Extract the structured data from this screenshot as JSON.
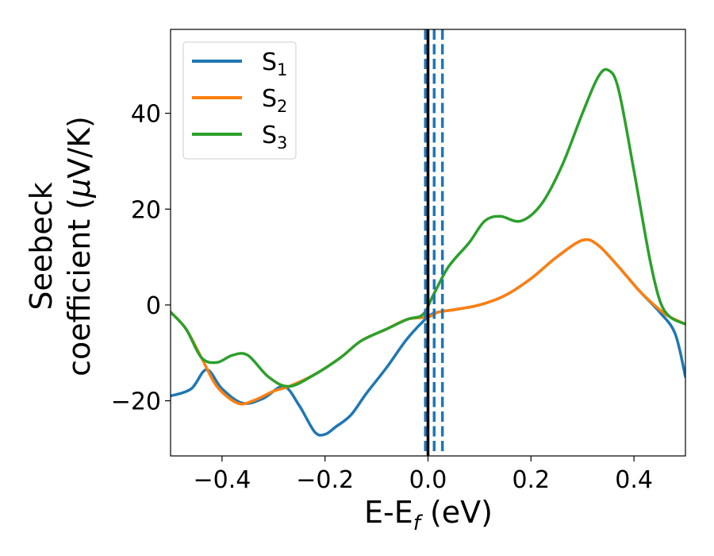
{
  "chart_data": {
    "type": "line",
    "xlabel": "E-E",
    "xlabel_sub": "f",
    "xlabel_unit": " (eV)",
    "ylabel_line1": "Seebeck",
    "ylabel_line2_prefix": "coefficient  (",
    "ylabel_mu": "μ",
    "ylabel_line2_suffix": "V/K)",
    "xlim": [
      -0.5,
      0.5
    ],
    "ylim": [
      -31.5,
      57.5
    ],
    "xticks": [
      -0.4,
      -0.2,
      0.0,
      0.2,
      0.4
    ],
    "xtick_labels": [
      "−0.4",
      "−0.2",
      "0.0",
      "0.2",
      "0.4"
    ],
    "yticks": [
      -20,
      0,
      20,
      40
    ],
    "ytick_labels": [
      "−20",
      "0",
      "20",
      "40"
    ],
    "grid": false,
    "legend_position": "upper-left",
    "vlines": [
      {
        "x": 0.0,
        "style": "solid",
        "color": "#000000"
      },
      {
        "x": -0.005,
        "style": "dashed",
        "color": "#1f77b4"
      },
      {
        "x": 0.012,
        "style": "dashed",
        "color": "#1f77b4"
      },
      {
        "x": 0.028,
        "style": "dashed",
        "color": "#1f77b4"
      }
    ],
    "series": [
      {
        "name": "S",
        "sub": "1",
        "color": "#1f77b4",
        "points": [
          [
            -0.5,
            -19
          ],
          [
            -0.46,
            -17.5
          ],
          [
            -0.43,
            -13.5
          ],
          [
            -0.4,
            -17.5
          ],
          [
            -0.36,
            -20.5
          ],
          [
            -0.32,
            -19.5
          ],
          [
            -0.28,
            -17
          ],
          [
            -0.25,
            -21
          ],
          [
            -0.22,
            -26.5
          ],
          [
            -0.2,
            -27
          ],
          [
            -0.18,
            -25.5
          ],
          [
            -0.15,
            -23
          ],
          [
            -0.12,
            -18.5
          ],
          [
            -0.08,
            -13
          ],
          [
            -0.04,
            -7
          ],
          [
            0.0,
            -2.5
          ],
          [
            0.02,
            -1.5
          ],
          [
            0.05,
            -1
          ],
          [
            0.1,
            0
          ],
          [
            0.15,
            2
          ],
          [
            0.2,
            5.5
          ],
          [
            0.25,
            10
          ],
          [
            0.3,
            13.5
          ],
          [
            0.33,
            12.5
          ],
          [
            0.37,
            8
          ],
          [
            0.41,
            3
          ],
          [
            0.45,
            -1.5
          ],
          [
            0.48,
            -6
          ],
          [
            0.5,
            -15
          ]
        ]
      },
      {
        "name": "S",
        "sub": "2",
        "color": "#ff7f0e",
        "points": [
          [
            -0.5,
            -1.5
          ],
          [
            -0.47,
            -5
          ],
          [
            -0.44,
            -11
          ],
          [
            -0.41,
            -17
          ],
          [
            -0.37,
            -20.5
          ],
          [
            -0.34,
            -20
          ],
          [
            -0.3,
            -18
          ],
          [
            -0.27,
            -17
          ],
          [
            -0.22,
            -14.5
          ],
          [
            -0.17,
            -11
          ],
          [
            -0.13,
            -7.5
          ],
          [
            -0.08,
            -5
          ],
          [
            -0.04,
            -3
          ],
          [
            0.0,
            -2.5
          ],
          [
            0.02,
            -1.5
          ],
          [
            0.05,
            -1
          ],
          [
            0.1,
            0
          ],
          [
            0.15,
            2
          ],
          [
            0.2,
            5.5
          ],
          [
            0.25,
            10
          ],
          [
            0.3,
            13.5
          ],
          [
            0.33,
            12.5
          ],
          [
            0.37,
            8
          ],
          [
            0.41,
            3
          ],
          [
            0.45,
            -1
          ],
          [
            0.47,
            -2.5
          ],
          [
            0.5,
            -4
          ]
        ]
      },
      {
        "name": "S",
        "sub": "3",
        "color": "#2ca02c",
        "points": [
          [
            -0.5,
            -1.5
          ],
          [
            -0.47,
            -5
          ],
          [
            -0.44,
            -11
          ],
          [
            -0.41,
            -12
          ],
          [
            -0.38,
            -10.5
          ],
          [
            -0.35,
            -10.5
          ],
          [
            -0.31,
            -15
          ],
          [
            -0.27,
            -17
          ],
          [
            -0.22,
            -14.5
          ],
          [
            -0.17,
            -11
          ],
          [
            -0.13,
            -7.5
          ],
          [
            -0.08,
            -5
          ],
          [
            -0.04,
            -3
          ],
          [
            -0.01,
            -2
          ],
          [
            0.01,
            2
          ],
          [
            0.04,
            8
          ],
          [
            0.08,
            13
          ],
          [
            0.11,
            17.5
          ],
          [
            0.14,
            18.5
          ],
          [
            0.18,
            17.5
          ],
          [
            0.22,
            21
          ],
          [
            0.26,
            29
          ],
          [
            0.3,
            40
          ],
          [
            0.33,
            47.5
          ],
          [
            0.35,
            49
          ],
          [
            0.37,
            45
          ],
          [
            0.4,
            28
          ],
          [
            0.43,
            10
          ],
          [
            0.45,
            1
          ],
          [
            0.47,
            -2.5
          ],
          [
            0.5,
            -4
          ]
        ]
      }
    ]
  }
}
